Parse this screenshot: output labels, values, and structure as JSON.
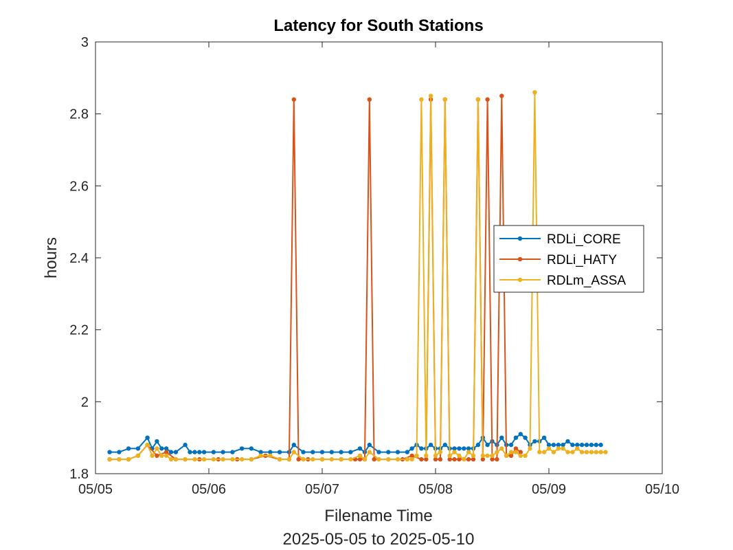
{
  "chart_data": {
    "type": "line",
    "title": "Latency for South Stations",
    "xlabel": "Filename Time",
    "xlabel2": "2025-05-05 to 2025-05-10",
    "ylabel": "hours",
    "xlim": [
      "2025-05-05 00:00",
      "2025-05-10 00:00"
    ],
    "ylim": [
      1.8,
      3.0
    ],
    "x_ticks": [
      "05/05",
      "05/06",
      "05/07",
      "05/08",
      "05/09",
      "05/10"
    ],
    "y_ticks": [
      "1.8",
      "2",
      "2.2",
      "2.4",
      "2.6",
      "2.8",
      "3"
    ],
    "grid": false,
    "legend_position": "right",
    "colors": {
      "RDLi_CORE": "#0072BD",
      "RDLi_HATY": "#D95319",
      "RDLm_ASSA": "#EDB120"
    },
    "series": [
      {
        "name": "RDLi_CORE",
        "x": [
          "2025-05-05 03:00",
          "2025-05-05 05:00",
          "2025-05-05 07:00",
          "2025-05-05 09:00",
          "2025-05-05 11:00",
          "2025-05-05 12:00",
          "2025-05-05 13:00",
          "2025-05-05 14:00",
          "2025-05-05 15:00",
          "2025-05-05 16:00",
          "2025-05-05 17:00",
          "2025-05-05 19:00",
          "2025-05-05 20:00",
          "2025-05-05 21:00",
          "2025-05-05 22:00",
          "2025-05-05 23:00",
          "2025-05-06 01:00",
          "2025-05-06 03:00",
          "2025-05-06 05:00",
          "2025-05-06 07:00",
          "2025-05-06 09:00",
          "2025-05-06 11:00",
          "2025-05-06 13:00",
          "2025-05-06 15:00",
          "2025-05-06 17:00",
          "2025-05-06 18:00",
          "2025-05-06 20:00",
          "2025-05-06 22:00",
          "2025-05-07 00:00",
          "2025-05-07 02:00",
          "2025-05-07 04:00",
          "2025-05-07 06:00",
          "2025-05-07 08:00",
          "2025-05-07 09:00",
          "2025-05-07 10:00",
          "2025-05-07 12:00",
          "2025-05-07 14:00",
          "2025-05-07 16:00",
          "2025-05-07 18:00",
          "2025-05-07 19:00",
          "2025-05-07 20:00",
          "2025-05-07 21:00",
          "2025-05-07 22:00",
          "2025-05-07 23:00",
          "2025-05-08 00:00",
          "2025-05-08 01:00",
          "2025-05-08 02:00",
          "2025-05-08 03:00",
          "2025-05-08 04:00",
          "2025-05-08 05:00",
          "2025-05-08 06:00",
          "2025-05-08 07:00",
          "2025-05-08 08:00",
          "2025-05-08 09:00",
          "2025-05-08 10:00",
          "2025-05-08 11:00",
          "2025-05-08 12:00",
          "2025-05-08 13:00",
          "2025-05-08 14:00",
          "2025-05-08 15:00",
          "2025-05-08 16:00",
          "2025-05-08 17:00",
          "2025-05-08 18:00",
          "2025-05-08 19:00",
          "2025-05-08 20:00",
          "2025-05-08 21:00",
          "2025-05-08 22:00",
          "2025-05-08 23:00",
          "2025-05-09 00:00",
          "2025-05-09 01:00",
          "2025-05-09 02:00",
          "2025-05-09 03:00",
          "2025-05-09 04:00",
          "2025-05-09 05:00",
          "2025-05-09 06:00",
          "2025-05-09 07:00",
          "2025-05-09 08:00",
          "2025-05-09 09:00",
          "2025-05-09 10:00",
          "2025-05-09 11:00"
        ],
        "y": [
          1.86,
          1.86,
          1.87,
          1.87,
          1.9,
          1.87,
          1.89,
          1.87,
          1.87,
          1.86,
          1.86,
          1.88,
          1.86,
          1.86,
          1.86,
          1.86,
          1.86,
          1.86,
          1.86,
          1.87,
          1.87,
          1.86,
          1.86,
          1.86,
          1.86,
          1.88,
          1.86,
          1.86,
          1.86,
          1.86,
          1.86,
          1.86,
          1.87,
          1.86,
          1.88,
          1.86,
          1.86,
          1.86,
          1.86,
          1.87,
          1.88,
          1.87,
          1.87,
          1.88,
          1.87,
          1.87,
          1.88,
          1.87,
          1.87,
          1.87,
          1.87,
          1.87,
          1.87,
          1.88,
          1.9,
          1.88,
          1.89,
          1.88,
          1.9,
          1.88,
          1.88,
          1.9,
          1.91,
          1.9,
          1.88,
          1.89,
          1.89,
          1.9,
          1.88,
          1.88,
          1.88,
          1.88,
          1.89,
          1.88,
          1.88,
          1.88,
          1.88,
          1.88,
          1.88,
          1.88
        ]
      },
      {
        "name": "RDLi_HATY",
        "x": [
          "2025-05-05 03:00",
          "2025-05-05 05:00",
          "2025-05-05 07:00",
          "2025-05-05 09:00",
          "2025-05-05 11:00",
          "2025-05-05 13:00",
          "2025-05-05 15:00",
          "2025-05-05 17:00",
          "2025-05-05 19:00",
          "2025-05-05 22:00",
          "2025-05-06 02:00",
          "2025-05-06 06:00",
          "2025-05-06 09:00",
          "2025-05-06 12:00",
          "2025-05-06 15:00",
          "2025-05-06 17:00",
          "2025-05-06 18:00",
          "2025-05-06 19:00",
          "2025-05-06 21:00",
          "2025-05-07 00:00",
          "2025-05-07 04:00",
          "2025-05-07 07:00",
          "2025-05-07 08:00",
          "2025-05-07 09:00",
          "2025-05-07 10:00",
          "2025-05-07 11:00",
          "2025-05-07 14:00",
          "2025-05-07 17:00",
          "2025-05-07 19:00",
          "2025-05-07 21:00",
          "2025-05-07 22:00",
          "2025-05-07 23:00",
          "2025-05-08 00:00",
          "2025-05-08 01:00",
          "2025-05-08 02:00",
          "2025-05-08 03:00",
          "2025-05-08 04:00",
          "2025-05-08 05:00",
          "2025-05-08 07:00",
          "2025-05-08 08:00",
          "2025-05-08 09:00",
          "2025-05-08 10:00",
          "2025-05-08 11:00",
          "2025-05-08 12:00",
          "2025-05-08 13:00",
          "2025-05-08 14:00",
          "2025-05-08 15:00",
          "2025-05-08 16:00",
          "2025-05-08 17:00",
          "2025-05-08 18:00"
        ],
        "y": [
          1.84,
          1.84,
          1.84,
          1.85,
          1.88,
          1.85,
          1.86,
          1.84,
          1.84,
          1.84,
          1.84,
          1.84,
          1.84,
          1.85,
          1.84,
          1.84,
          2.84,
          1.84,
          1.84,
          1.84,
          1.84,
          1.84,
          1.84,
          1.84,
          2.84,
          1.84,
          1.84,
          1.84,
          1.85,
          1.84,
          1.84,
          2.84,
          1.84,
          1.84,
          2.84,
          1.84,
          1.84,
          1.84,
          1.84,
          1.84,
          2.84,
          1.84,
          2.84,
          1.84,
          1.84,
          2.85,
          1.85,
          1.85,
          1.87,
          1.86
        ]
      },
      {
        "name": "RDLm_ASSA",
        "x": [
          "2025-05-05 03:00",
          "2025-05-05 05:00",
          "2025-05-05 07:00",
          "2025-05-05 09:00",
          "2025-05-05 11:00",
          "2025-05-05 12:00",
          "2025-05-05 13:00",
          "2025-05-05 14:00",
          "2025-05-05 15:00",
          "2025-05-05 16:00",
          "2025-05-05 17:00",
          "2025-05-05 19:00",
          "2025-05-05 21:00",
          "2025-05-05 23:00",
          "2025-05-06 01:00",
          "2025-05-06 03:00",
          "2025-05-06 05:00",
          "2025-05-06 07:00",
          "2025-05-06 09:00",
          "2025-05-06 11:00",
          "2025-05-06 13:00",
          "2025-05-06 15:00",
          "2025-05-06 17:00",
          "2025-05-06 18:00",
          "2025-05-06 20:00",
          "2025-05-06 22:00",
          "2025-05-07 00:00",
          "2025-05-07 02:00",
          "2025-05-07 04:00",
          "2025-05-07 06:00",
          "2025-05-07 08:00",
          "2025-05-07 09:00",
          "2025-05-07 10:00",
          "2025-05-07 12:00",
          "2025-05-07 14:00",
          "2025-05-07 16:00",
          "2025-05-07 18:00",
          "2025-05-07 19:00",
          "2025-05-07 20:00",
          "2025-05-07 21:00",
          "2025-05-07 22:00",
          "2025-05-07 23:00",
          "2025-05-08 00:00",
          "2025-05-08 01:00",
          "2025-05-08 02:00",
          "2025-05-08 03:00",
          "2025-05-08 04:00",
          "2025-05-08 05:00",
          "2025-05-08 06:00",
          "2025-05-08 07:00",
          "2025-05-08 08:00",
          "2025-05-08 09:00",
          "2025-05-08 10:00",
          "2025-05-08 11:00",
          "2025-05-08 12:00",
          "2025-05-08 13:00",
          "2025-05-08 14:00",
          "2025-05-08 15:00",
          "2025-05-08 16:00",
          "2025-05-08 17:00",
          "2025-05-08 18:00",
          "2025-05-08 19:00",
          "2025-05-08 20:00",
          "2025-05-08 21:00",
          "2025-05-08 22:00",
          "2025-05-08 23:00",
          "2025-05-09 00:00",
          "2025-05-09 01:00",
          "2025-05-09 02:00",
          "2025-05-09 03:00",
          "2025-05-09 04:00",
          "2025-05-09 05:00",
          "2025-05-09 06:00",
          "2025-05-09 07:00",
          "2025-05-09 08:00",
          "2025-05-09 09:00",
          "2025-05-09 10:00",
          "2025-05-09 11:00",
          "2025-05-09 12:00"
        ],
        "y": [
          1.84,
          1.84,
          1.84,
          1.85,
          1.88,
          1.85,
          1.87,
          1.85,
          1.85,
          1.84,
          1.84,
          1.84,
          1.84,
          1.84,
          1.84,
          1.84,
          1.84,
          1.84,
          1.84,
          1.85,
          1.85,
          1.84,
          1.84,
          1.86,
          1.84,
          1.84,
          1.84,
          1.84,
          1.84,
          1.84,
          1.85,
          1.84,
          1.86,
          1.84,
          1.84,
          1.84,
          1.84,
          1.84,
          1.85,
          2.84,
          1.85,
          2.85,
          1.85,
          1.86,
          2.84,
          1.85,
          1.86,
          1.85,
          1.84,
          1.86,
          1.85,
          2.84,
          1.85,
          1.85,
          1.85,
          1.86,
          1.87,
          1.85,
          1.86,
          1.86,
          1.85,
          1.85,
          1.87,
          2.86,
          1.86,
          1.86,
          1.87,
          1.86,
          1.87,
          1.87,
          1.86,
          1.86,
          1.87,
          1.86,
          1.86,
          1.86,
          1.86,
          1.86,
          1.86
        ]
      }
    ]
  }
}
